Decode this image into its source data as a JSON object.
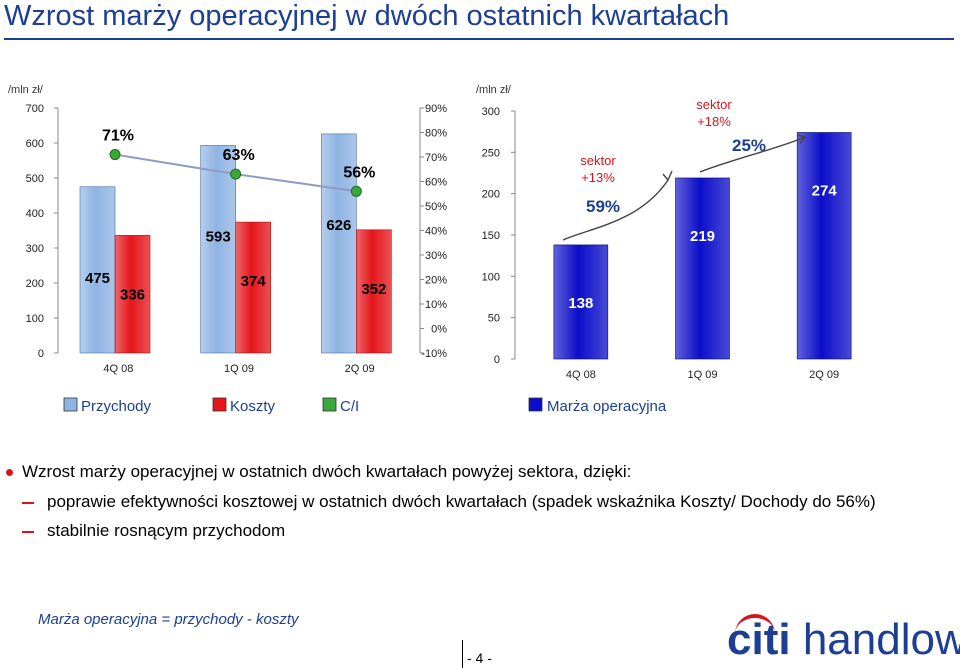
{
  "title": "Wzrost marży operacyjnej  w dwóch ostatnich kwartałach",
  "chart_data": [
    {
      "type": "bar",
      "unit_label": "/mln zł/",
      "categories": [
        "4Q 08",
        "1Q 09",
        "2Q 09"
      ],
      "ylim": [
        0,
        700
      ],
      "yticks": [
        "0",
        "100",
        "200",
        "300",
        "400",
        "500",
        "600",
        "700"
      ],
      "y2lim": [
        -10,
        90
      ],
      "y2ticks": [
        "-10%",
        "0%",
        "10%",
        "20%",
        "30%",
        "40%",
        "50%",
        "60%",
        "70%",
        "80%",
        "90%"
      ],
      "series": [
        {
          "name": "Przychody",
          "color": "#8fb4e3",
          "values": [
            475,
            593,
            626
          ],
          "labels": [
            "475",
            "593",
            "626"
          ]
        },
        {
          "name": "Koszty",
          "color": "#e4161b",
          "values": [
            336,
            374,
            352
          ],
          "labels": [
            "336",
            "374",
            "352"
          ]
        },
        {
          "name": "C/I",
          "color": "#3aa83a",
          "axis": "secondary",
          "values": [
            71,
            63,
            56
          ],
          "labels": [
            "71%",
            "63%",
            "56%"
          ]
        }
      ]
    },
    {
      "type": "bar",
      "unit_label": "/mln zł/",
      "categories": [
        "4Q 08",
        "1Q 09",
        "2Q 09"
      ],
      "ylim": [
        0,
        300
      ],
      "yticks": [
        "0",
        "50",
        "100",
        "150",
        "200",
        "250",
        "300"
      ],
      "series": [
        {
          "name": "Marża operacyjna",
          "color": "#0b0ec8",
          "values": [
            138,
            219,
            274
          ],
          "labels": [
            "138",
            "219",
            "274"
          ]
        }
      ],
      "annotations": [
        {
          "text": "sektor",
          "text2": "+13%",
          "pct": "59%"
        },
        {
          "text": "sektor",
          "text2": "+18%",
          "pct": "25%"
        }
      ]
    }
  ],
  "bullets": {
    "main": "Wzrost marży operacyjnej w ostatnich dwóch kwartałach powyżej sektora, dzięki:",
    "sub1": "poprawie efektywności kosztowej w ostatnich dwóch kwartałach (spadek wskaźnika Koszty/ Dochody  do 56%)",
    "sub2": "stabilnie rosnącym przychodom"
  },
  "footnote": "Marża operacyjna = przychody - koszty",
  "page_number": "- 4 -",
  "logo": {
    "brand": "citi",
    "name": "handlowy"
  }
}
